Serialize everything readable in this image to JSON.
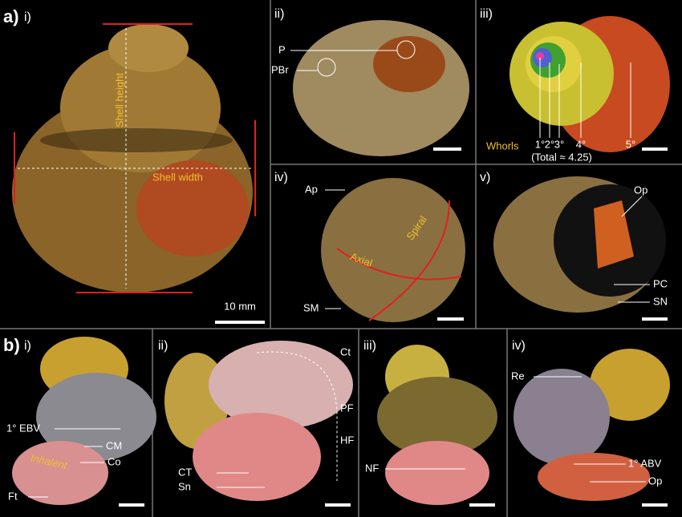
{
  "figure_a": {
    "label": "a)",
    "panels": [
      {
        "label": "i)",
        "annotations": [
          "Shell height",
          "Shell width"
        ],
        "scale_bar": "10 mm"
      },
      {
        "label": "ii)",
        "annotations": [
          "P",
          "PBr"
        ]
      },
      {
        "label": "iii)",
        "annotations": [
          "Whorls",
          "1°",
          "2°",
          "3°",
          "4°",
          "5°",
          "(Total ≈ 4.25)"
        ]
      },
      {
        "label": "iv)",
        "annotations": [
          "Ap",
          "Spiral",
          "Axial",
          "SM"
        ]
      },
      {
        "label": "v)",
        "annotations": [
          "Op",
          "PC",
          "SN"
        ]
      }
    ]
  },
  "figure_b": {
    "label": "b)",
    "panels": [
      {
        "label": "i)",
        "annotations": [
          "1° EBV",
          "CM",
          "Inhalent",
          "Co",
          "Ft"
        ]
      },
      {
        "label": "ii)",
        "annotations": [
          "Ct",
          "PF",
          "HF",
          "CT",
          "Sn"
        ]
      },
      {
        "label": "iii)",
        "annotations": [
          "NF"
        ]
      },
      {
        "label": "iv)",
        "annotations": [
          "Re",
          "1° ABV",
          "Op"
        ]
      }
    ]
  }
}
